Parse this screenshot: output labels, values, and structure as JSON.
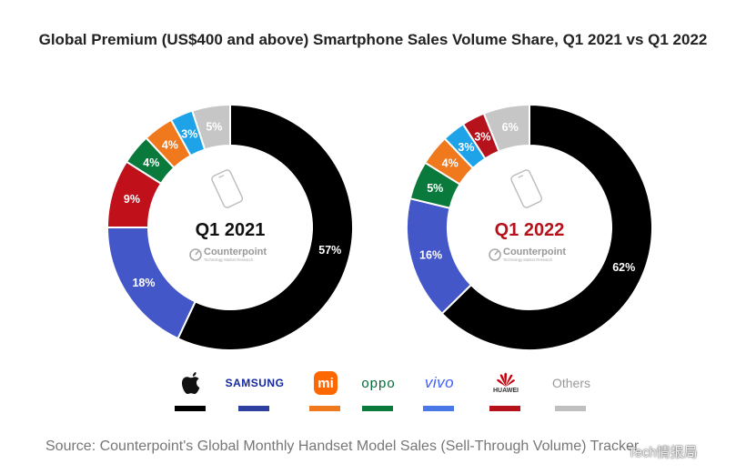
{
  "title": "Global Premium (US$400 and above) Smartphone Sales Volume Share, Q1 2021 vs Q1 2022",
  "source": "Source: Counterpoint's Global Monthly Handset Model Sales (Sell-Through Volume) Tracker",
  "watermark": "Tech情报局",
  "brand": {
    "name": "Counterpoint",
    "tagline": "Technology Market Research"
  },
  "legend": [
    {
      "key": "apple",
      "icon": "apple-logo-icon",
      "color": "#000000"
    },
    {
      "key": "samsung",
      "text": "SAMSUNG",
      "color": "#2E3FA0"
    },
    {
      "key": "xiaomi",
      "text": "mi",
      "icon": "xiaomi-logo-icon",
      "color": "#F0791E"
    },
    {
      "key": "oppo",
      "text": "oppo",
      "color": "#0A7A3C"
    },
    {
      "key": "vivo",
      "text": "vivo",
      "color": "#4A78E6"
    },
    {
      "key": "huawei",
      "text": "HUAWEI",
      "icon": "huawei-logo-icon",
      "color": "#B5121B"
    },
    {
      "key": "others",
      "text": "Others",
      "color": "#BFBFBF"
    }
  ],
  "chart_data": [
    {
      "type": "pie",
      "center_label": "Q1 2021",
      "center_color": "#111111",
      "slices": [
        {
          "key": "apple",
          "value": 57,
          "label": "57%",
          "color": "#000000"
        },
        {
          "key": "samsung",
          "value": 18,
          "label": "18%",
          "color": "#4457C8"
        },
        {
          "key": "huawei",
          "value": 9,
          "label": "9%",
          "color": "#C0101A"
        },
        {
          "key": "oppo",
          "value": 4,
          "label": "4%",
          "color": "#0A7A3C"
        },
        {
          "key": "xiaomi",
          "value": 4,
          "label": "4%",
          "color": "#F0791E"
        },
        {
          "key": "vivo",
          "value": 3,
          "label": "3%",
          "color": "#1FA3E8"
        },
        {
          "key": "others",
          "value": 5,
          "label": "5%",
          "color": "#C6C6C6"
        }
      ]
    },
    {
      "type": "pie",
      "center_label": "Q1 2022",
      "center_color": "#B5121B",
      "slices": [
        {
          "key": "apple",
          "value": 62,
          "label": "62%",
          "color": "#000000"
        },
        {
          "key": "samsung",
          "value": 16,
          "label": "16%",
          "color": "#4457C8"
        },
        {
          "key": "oppo",
          "value": 5,
          "label": "5%",
          "color": "#0A7A3C"
        },
        {
          "key": "xiaomi",
          "value": 4,
          "label": "4%",
          "color": "#F0791E"
        },
        {
          "key": "vivo",
          "value": 3,
          "label": "3%",
          "color": "#1FA3E8"
        },
        {
          "key": "huawei",
          "value": 3,
          "label": "3%",
          "color": "#B5121B"
        },
        {
          "key": "others",
          "value": 6,
          "label": "6%",
          "color": "#C6C6C6"
        }
      ]
    }
  ]
}
